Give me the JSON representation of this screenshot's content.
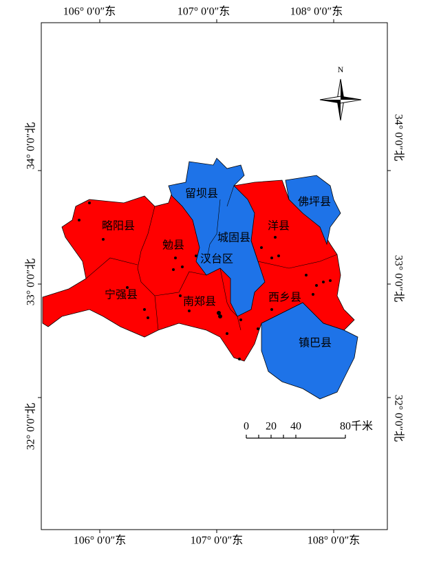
{
  "map": {
    "top_labels": [
      "106° 0′0″东",
      "107° 0′0″东",
      "108° 0′0″东"
    ],
    "bottom_labels": [
      "106° 0′0″东",
      "107° 0′0″东",
      "108° 0′0″东"
    ],
    "left_labels": [
      "34° 0′0″北",
      "33° 0′0″北",
      "32° 0′0″北"
    ],
    "right_labels": [
      "34° 0′0″北",
      "33° 0′0″北",
      "32° 0′0″北"
    ],
    "counties": [
      "留坝县",
      "佛坪县",
      "略阳县",
      "洋县",
      "城固县",
      "勉县",
      "汉台区",
      "宁强县",
      "西乡县",
      "南郑县",
      "镇巴县"
    ],
    "north": "N",
    "scale_labels": [
      "0",
      "20",
      "40",
      "80千米"
    ]
  }
}
